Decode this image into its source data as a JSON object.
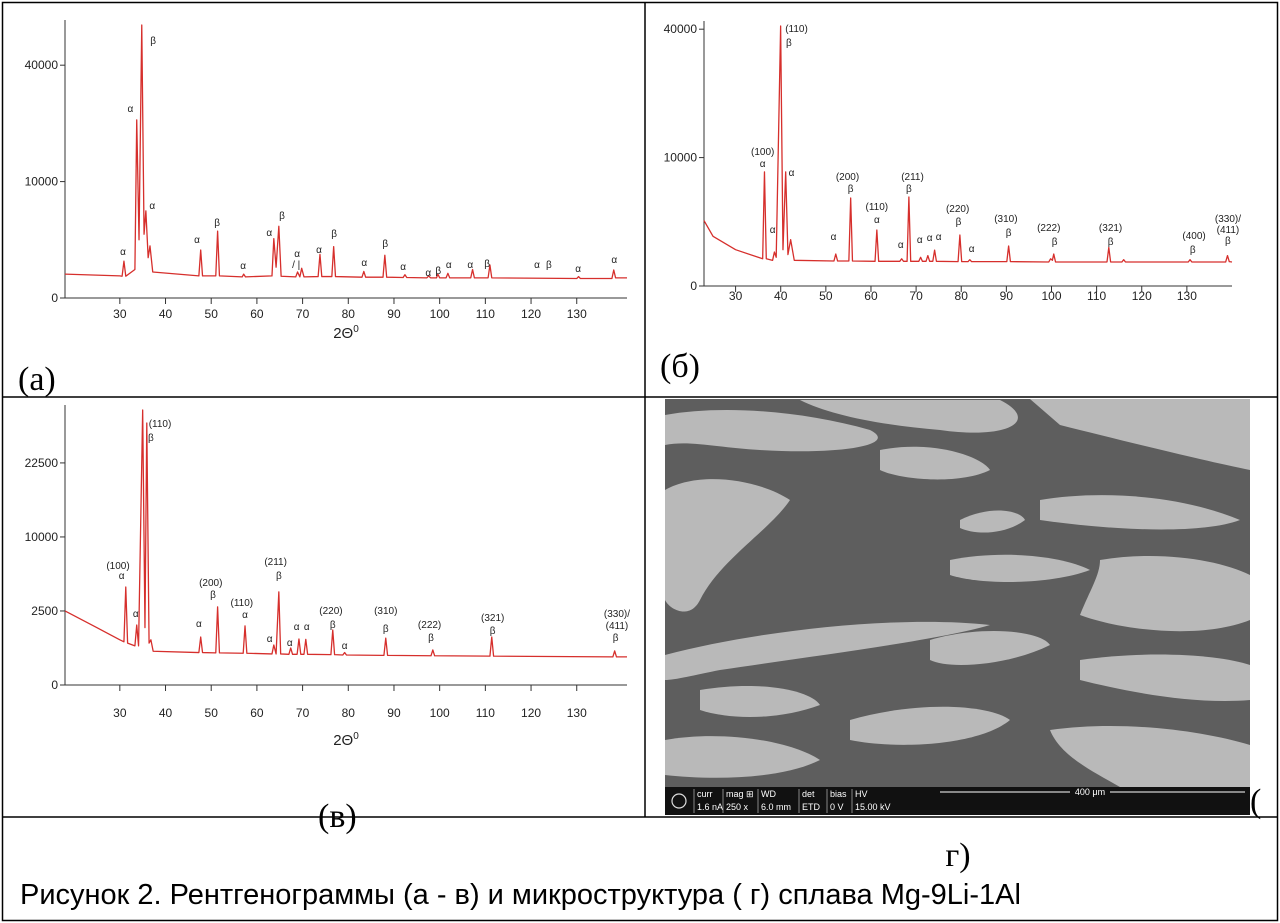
{
  "chart_data": [
    {
      "type": "line",
      "panel_label": "(а)",
      "x_label": "2Θ",
      "x_label_sup": "0",
      "color": "#d62f2c",
      "yscale": "sqrt",
      "xlim": [
        18,
        141
      ],
      "ylim": [
        0,
        55000
      ],
      "xticks": [
        30,
        40,
        50,
        60,
        70,
        80,
        90,
        100,
        110,
        120,
        130
      ],
      "yticks": [
        0,
        10000,
        40000
      ],
      "x": [
        18,
        30,
        30.5,
        30.9,
        31.3,
        33.3,
        33.7,
        34.2,
        34.8,
        35.3,
        35.7,
        36.2,
        36.6,
        37.2,
        47.3,
        47.7,
        48.1,
        51.0,
        51.4,
        51.8,
        56.8,
        57.1,
        57.5,
        63.3,
        63.7,
        64.2,
        64.8,
        65.3,
        68.5,
        68.9,
        69.4,
        69.8,
        70.3,
        73.4,
        73.8,
        74.2,
        76.4,
        76.8,
        77.2,
        83.0,
        83.4,
        83.8,
        87.6,
        88.0,
        88.4,
        92.0,
        92.4,
        92.8,
        97.2,
        97.6,
        98.0,
        99.3,
        99.6,
        100.0,
        101.4,
        101.8,
        102.2,
        106.8,
        107.2,
        107.6,
        110.6,
        111.0,
        111.4,
        130.0,
        130.4,
        130.8,
        137.7,
        138.1,
        138.5,
        141
      ],
      "values": [
        420,
        360,
        350,
        1000,
        350,
        600,
        23400,
        2500,
        55000,
        3000,
        5600,
        1200,
        2000,
        500,
        360,
        1700,
        360,
        360,
        3300,
        360,
        330,
        420,
        330,
        360,
        2600,
        700,
        3800,
        350,
        330,
        500,
        330,
        650,
        330,
        340,
        1400,
        340,
        340,
        1950,
        340,
        320,
        520,
        320,
        320,
        1350,
        320,
        310,
        400,
        310,
        300,
        360,
        300,
        300,
        420,
        300,
        300,
        450,
        300,
        300,
        600,
        300,
        300,
        800,
        300,
        280,
        340,
        280,
        280,
        580,
        300,
        300
      ],
      "annotations": [
        {
          "text": "α",
          "x": 30.7,
          "y": 1362
        },
        {
          "text": "α",
          "x": 32.3,
          "y": 25490
        },
        {
          "text": "β",
          "x": 37.3,
          "y": 47530
        },
        {
          "text": "α",
          "x": 37.1,
          "y": 5836
        },
        {
          "text": "α",
          "x": 46.9,
          "y": 2229
        },
        {
          "text": "β",
          "x": 51.3,
          "y": 3820
        },
        {
          "text": "α",
          "x": 57,
          "y": 620
        },
        {
          "text": "α",
          "x": 62.7,
          "y": 2832
        },
        {
          "text": "β",
          "x": 65.5,
          "y": 4598
        },
        {
          "text": "α",
          "x": 68.8,
          "y": 1239
        },
        {
          "text": "/ |",
          "x": 68.6,
          "y": 663
        },
        {
          "text": "α",
          "x": 73.6,
          "y": 1492
        },
        {
          "text": "β",
          "x": 76.9,
          "y": 2742
        },
        {
          "text": "α",
          "x": 83.5,
          "y": 754
        },
        {
          "text": "β",
          "x": 88.1,
          "y": 1916
        },
        {
          "text": "α",
          "x": 92,
          "y": 578
        },
        {
          "text": "α",
          "x": 97.5,
          "y": 357
        },
        {
          "text": "β",
          "x": 99.7,
          "y": 424
        },
        {
          "text": "α",
          "x": 102,
          "y": 663
        },
        {
          "text": "α",
          "x": 106.7,
          "y": 663
        },
        {
          "text": "β",
          "x": 110.4,
          "y": 708
        },
        {
          "text": "α",
          "x": 121.3,
          "y": 663
        },
        {
          "text": "β",
          "x": 123.9,
          "y": 663
        },
        {
          "text": "α",
          "x": 130.3,
          "y": 498
        },
        {
          "text": "α",
          "x": 138.2,
          "y": 903
        }
      ]
    },
    {
      "type": "line",
      "panel_label": "(б)",
      "color": "#d62f2c",
      "yscale": "sqrt",
      "xlim": [
        23,
        140
      ],
      "ylim": [
        0,
        41000
      ],
      "xticks": [
        30,
        40,
        50,
        60,
        70,
        80,
        90,
        100,
        110,
        120,
        130
      ],
      "yticks": [
        0,
        10000,
        40000
      ],
      "x": [
        23,
        25,
        30,
        35,
        36.0,
        36.4,
        36.8,
        38.2,
        38.6,
        39.0,
        39.98,
        40.5,
        41.1,
        41.6,
        42.2,
        43,
        51.8,
        52.2,
        52.6,
        55.1,
        55.5,
        55.9,
        60.9,
        61.3,
        61.7,
        66.4,
        66.8,
        67.2,
        68.0,
        68.4,
        68.8,
        70.6,
        71.0,
        71.4,
        72.2,
        72.6,
        73.0,
        73.7,
        74.1,
        74.5,
        79.3,
        79.7,
        80.1,
        81.5,
        81.9,
        82.3,
        90.1,
        90.5,
        90.9,
        99.4,
        99.8,
        100.2,
        100.5,
        100.9,
        112.3,
        112.7,
        113.1,
        115.6,
        116,
        116.4,
        130.3,
        130.7,
        131.1,
        138.6,
        139,
        139.4,
        140
      ],
      "values": [
        2600,
        1500,
        800,
        500,
        450,
        7900,
        450,
        400,
        700,
        500,
        41000,
        800,
        7900,
        600,
        1300,
        400,
        380,
        620,
        380,
        380,
        4700,
        380,
        370,
        1900,
        370,
        370,
        450,
        370,
        370,
        4800,
        370,
        370,
        500,
        370,
        370,
        560,
        370,
        370,
        780,
        370,
        360,
        1575,
        360,
        360,
        420,
        360,
        360,
        970,
        360,
        350,
        450,
        400,
        620,
        350,
        350,
        900,
        350,
        350,
        420,
        350,
        350,
        420,
        350,
        350,
        560,
        360,
        350
      ],
      "annotations": [
        {
          "text": "(110)",
          "x": 43.5,
          "y": 39070
        },
        {
          "text": "β",
          "x": 41.8,
          "y": 34880
        },
        {
          "text": "(100)",
          "x": 36,
          "y": 10390
        },
        {
          "text": "α",
          "x": 36,
          "y": 8576
        },
        {
          "text": "α",
          "x": 42.4,
          "y": 7330
        },
        {
          "text": "α",
          "x": 38.2,
          "y": 1700
        },
        {
          "text": "(200)",
          "x": 54.8,
          "y": 6800
        },
        {
          "text": "β",
          "x": 55.5,
          "y": 5350
        },
        {
          "text": "α",
          "x": 51.7,
          "y": 1280
        },
        {
          "text": "(110)",
          "x": 61.3,
          "y": 3500
        },
        {
          "text": "α",
          "x": 61.3,
          "y": 2400
        },
        {
          "text": "(211)",
          "x": 69.2,
          "y": 6800
        },
        {
          "text": "β",
          "x": 68.4,
          "y": 5350
        },
        {
          "text": "α",
          "x": 66.6,
          "y": 875
        },
        {
          "text": "α",
          "x": 70.8,
          "y": 1120
        },
        {
          "text": "α",
          "x": 73,
          "y": 1230
        },
        {
          "text": "α",
          "x": 75,
          "y": 1280
        },
        {
          "text": "(220)",
          "x": 79.2,
          "y": 3316
        },
        {
          "text": "β",
          "x": 79.4,
          "y": 2250
        },
        {
          "text": "α",
          "x": 82.3,
          "y": 700
        },
        {
          "text": "(310)",
          "x": 89.9,
          "y": 2480
        },
        {
          "text": "β",
          "x": 90.5,
          "y": 1514
        },
        {
          "text": "(222)",
          "x": 99.4,
          "y": 1830
        },
        {
          "text": "β",
          "x": 100.7,
          "y": 1018
        },
        {
          "text": "(321)",
          "x": 113.1,
          "y": 1830
        },
        {
          "text": "β",
          "x": 113.1,
          "y": 1018
        },
        {
          "text": "(400)",
          "x": 131.6,
          "y": 1338
        },
        {
          "text": "β",
          "x": 131.3,
          "y": 660
        },
        {
          "text": "(330)/",
          "x": 139.1,
          "y": 2480
        },
        {
          "text": "(411)",
          "x": 139.1,
          "y": 1700
        },
        {
          "text": "β",
          "x": 139.1,
          "y": 1068
        }
      ]
    },
    {
      "type": "line",
      "panel_label": "(в)",
      "x_label": "2Θ",
      "x_label_sup": "0",
      "color": "#d62f2c",
      "yscale": "sqrt",
      "xlim": [
        18,
        141
      ],
      "ylim": [
        0,
        34500
      ],
      "xticks": [
        30,
        40,
        50,
        60,
        70,
        80,
        90,
        100,
        110,
        120,
        130
      ],
      "yticks": [
        0,
        2500,
        10000,
        22500
      ],
      "x": [
        18,
        25,
        30,
        30.9,
        31.3,
        31.7,
        33.3,
        33.7,
        34.1,
        35,
        35.5,
        35.9,
        36.4,
        36.8,
        37.3,
        47.3,
        47.7,
        48.1,
        51.0,
        51.4,
        51.8,
        57.0,
        57.4,
        57.8,
        63.3,
        63.7,
        64.2,
        64.8,
        65.2,
        67.0,
        67.4,
        67.8,
        68.8,
        69.2,
        69.6,
        70.3,
        70.7,
        71.1,
        76.2,
        76.6,
        77.0,
        78.8,
        79.2,
        79.6,
        87.8,
        88.2,
        88.6,
        98.1,
        98.5,
        98.9,
        111.0,
        111.4,
        111.8,
        137.9,
        138.3,
        138.7,
        141
      ],
      "values": [
        2500,
        1500,
        930,
        850,
        4380,
        800,
        700,
        1640,
        700,
        34500,
        1500,
        31300,
        800,
        930,
        520,
        480,
        1050,
        480,
        470,
        2780,
        470,
        460,
        1590,
        460,
        440,
        730,
        440,
        3950,
        440,
        430,
        625,
        430,
        430,
        965,
        430,
        430,
        950,
        430,
        420,
        1380,
        420,
        410,
        480,
        410,
        400,
        1000,
        400,
        390,
        560,
        390,
        380,
        1050,
        380,
        360,
        530,
        360,
        360
      ],
      "annotations": [
        {
          "text": "(110)",
          "x": 38.8,
          "y": 30390
        },
        {
          "text": "β",
          "x": 36.8,
          "y": 27180
        },
        {
          "text": "(100)",
          "x": 29.6,
          "y": 6140
        },
        {
          "text": "α",
          "x": 30.4,
          "y": 5130
        },
        {
          "text": "α",
          "x": 33.5,
          "y": 2110
        },
        {
          "text": "(200)",
          "x": 49.9,
          "y": 4475
        },
        {
          "text": "β",
          "x": 50.4,
          "y": 3455
        },
        {
          "text": "α",
          "x": 47.3,
          "y": 1536
        },
        {
          "text": "(110)",
          "x": 56.7,
          "y": 2850
        },
        {
          "text": "α",
          "x": 57.4,
          "y": 2050
        },
        {
          "text": "(211)",
          "x": 64.1,
          "y": 6570
        },
        {
          "text": "β",
          "x": 64.8,
          "y": 5130
        },
        {
          "text": "α",
          "x": 62.8,
          "y": 844
        },
        {
          "text": "α",
          "x": 67.2,
          "y": 694
        },
        {
          "text": "α",
          "x": 68.7,
          "y": 1381
        },
        {
          "text": "α",
          "x": 70.9,
          "y": 1381
        },
        {
          "text": "(220)",
          "x": 76.2,
          "y": 2300
        },
        {
          "text": "β",
          "x": 76.6,
          "y": 1483
        },
        {
          "text": "α",
          "x": 79.2,
          "y": 592
        },
        {
          "text": "(310)",
          "x": 88.2,
          "y": 2300
        },
        {
          "text": "β",
          "x": 88.2,
          "y": 1282
        },
        {
          "text": "(222)",
          "x": 97.8,
          "y": 1483
        },
        {
          "text": "β",
          "x": 98.1,
          "y": 884
        },
        {
          "text": "(321)",
          "x": 111.6,
          "y": 1870
        },
        {
          "text": "β",
          "x": 111.6,
          "y": 1187
        },
        {
          "text": "(330)/",
          "x": 138.8,
          "y": 2110
        },
        {
          "text": "(411)",
          "x": 138.8,
          "y": 1432
        },
        {
          "text": "β",
          "x": 138.5,
          "y": 884
        }
      ]
    }
  ],
  "micrograph": {
    "panel_label_parts": [
      "(",
      "г)"
    ],
    "info": [
      {
        "label": "curr",
        "value": "1.6 nA"
      },
      {
        "label": "mag ⊞",
        "value": "250 x"
      },
      {
        "label": "WD",
        "value": "6.0 mm"
      },
      {
        "label": "det",
        "value": "ETD"
      },
      {
        "label": "bias",
        "value": "0 V"
      },
      {
        "label": "HV",
        "value": "15.00 kV"
      }
    ],
    "scale": "400 μm"
  },
  "caption": "Рисунок 2. Рентгенограммы (а - в) и микроструктура ( г) сплава Mg-9Li-1Al"
}
